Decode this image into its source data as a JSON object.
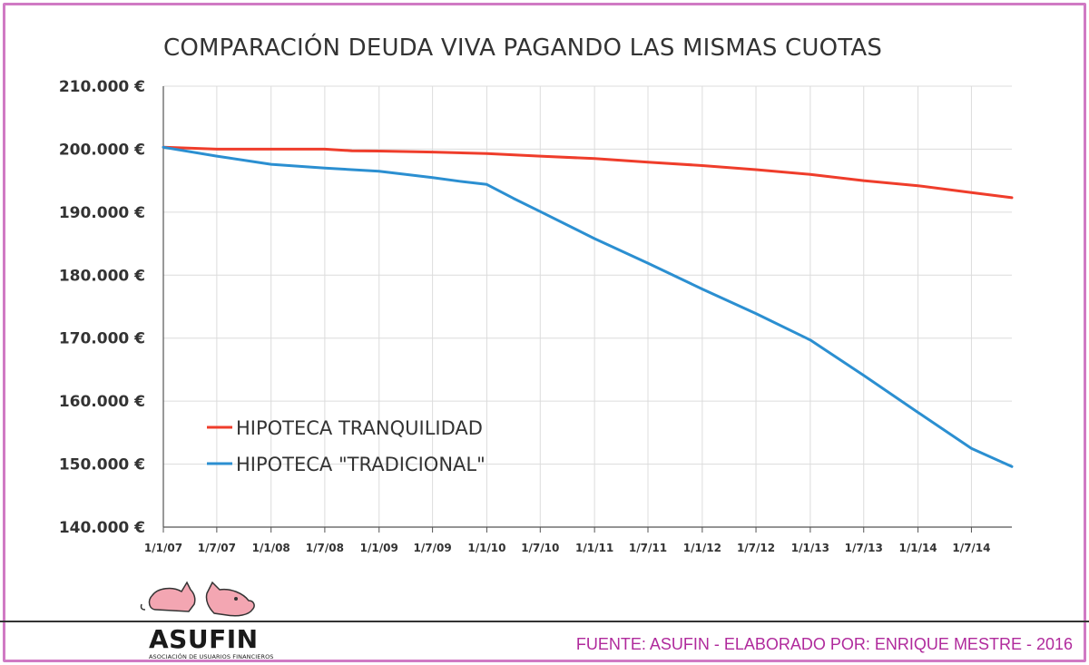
{
  "chart_data": {
    "type": "line",
    "title": "COMPARACIÓN DEUDA VIVA PAGANDO LAS MISMAS CUOTAS",
    "xlabel": "",
    "ylabel": "",
    "ylim": [
      140000,
      210000
    ],
    "xlim": [
      "2007-01-01",
      "2014-11-15"
    ],
    "y_ticks": [
      210000,
      200000,
      190000,
      180000,
      170000,
      160000,
      150000,
      140000
    ],
    "y_tick_labels": [
      "210.000 €",
      "200.000 €",
      "190.000 €",
      "180.000 €",
      "170.000 €",
      "160.000 €",
      "150.000 €",
      "140.000 €"
    ],
    "x_tick_labels": [
      "1/1/07",
      "1/7/07",
      "1/1/08",
      "1/7/08",
      "1/1/09",
      "1/7/09",
      "1/1/10",
      "1/7/10",
      "1/1/11",
      "1/7/11",
      "1/1/12",
      "1/7/12",
      "1/1/13",
      "1/7/13",
      "1/1/14",
      "1/7/14"
    ],
    "x_tick_dates": [
      "2007-01-01",
      "2007-07-01",
      "2008-01-01",
      "2008-07-01",
      "2009-01-01",
      "2009-07-01",
      "2010-01-01",
      "2010-07-01",
      "2011-01-01",
      "2011-07-01",
      "2012-01-01",
      "2012-07-01",
      "2013-01-01",
      "2013-07-01",
      "2014-01-01",
      "2014-07-01"
    ],
    "legend_position": "lower-left",
    "grid": true,
    "series": [
      {
        "name": "HIPOTECA TRANQUILIDAD",
        "color": "#ef3d2b",
        "x": [
          "2007-01-01",
          "2007-07-01",
          "2008-01-01",
          "2008-07-01",
          "2008-10-01",
          "2009-01-01",
          "2009-07-01",
          "2010-01-01",
          "2010-07-01",
          "2011-01-01",
          "2011-07-01",
          "2012-01-01",
          "2012-07-01",
          "2013-01-01",
          "2013-07-01",
          "2014-01-01",
          "2014-07-01",
          "2014-11-15"
        ],
        "y": [
          200300,
          200000,
          200000,
          200000,
          199750,
          199700,
          199550,
          199300,
          198900,
          198500,
          197950,
          197400,
          196750,
          196000,
          195000,
          194200,
          193100,
          192300
        ]
      },
      {
        "name": "HIPOTECA \"TRADICIONAL\"",
        "color": "#2b8fd1",
        "x": [
          "2007-01-01",
          "2007-07-01",
          "2008-01-01",
          "2008-07-01",
          "2009-01-01",
          "2009-07-01",
          "2009-10-01",
          "2010-01-01",
          "2010-04-01",
          "2010-07-01",
          "2011-01-01",
          "2011-07-01",
          "2012-01-01",
          "2012-07-01",
          "2013-01-01",
          "2013-07-01",
          "2014-01-01",
          "2014-07-01",
          "2014-11-15"
        ],
        "y": [
          200300,
          198900,
          197600,
          197000,
          196500,
          195500,
          194900,
          194400,
          192200,
          190100,
          185800,
          181900,
          177800,
          173900,
          169700,
          164100,
          158200,
          152500,
          149600
        ]
      }
    ]
  },
  "logo": {
    "name": "ASUFIN",
    "subtitle": "ASOCIACIÓN DE USUARIOS FINANCIEROS",
    "pig_color": "#f3a6b2"
  },
  "source_note": "FUENTE: ASUFIN - ELABORADO POR: ENRIQUE MESTRE - 2016",
  "colors": {
    "frame": "#d07ac4",
    "source_text": "#b02a9c",
    "grid": "#dcdcdc"
  }
}
